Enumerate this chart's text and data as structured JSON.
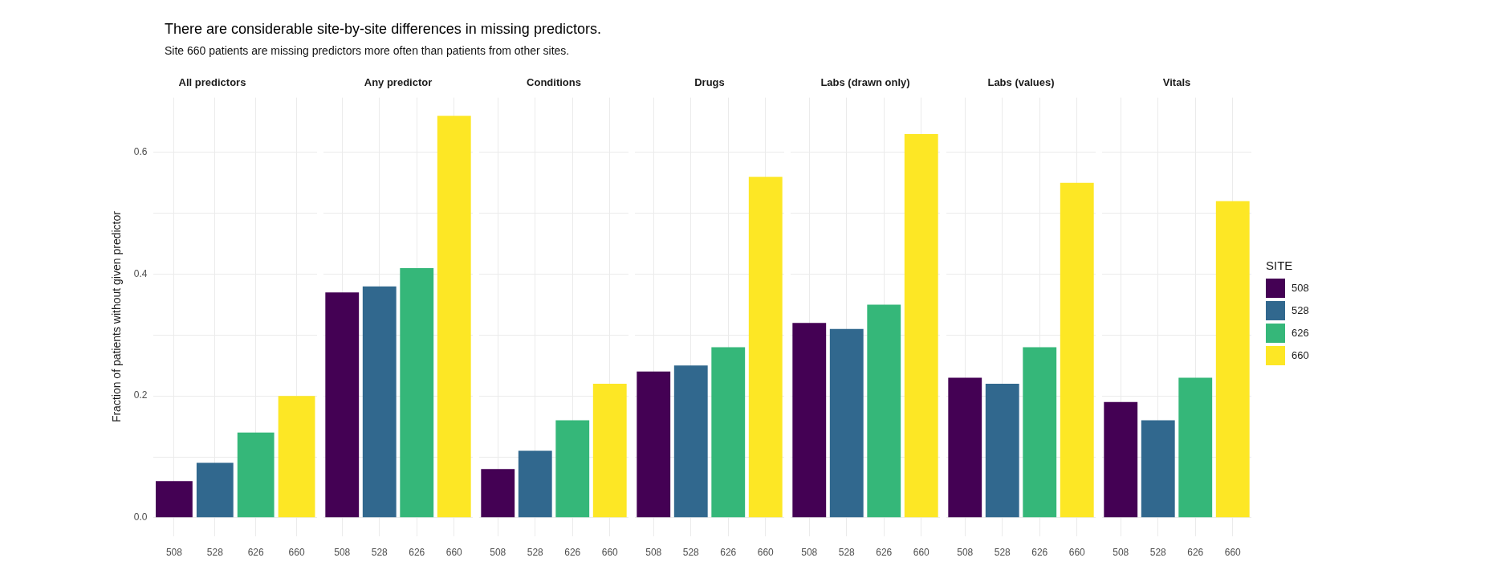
{
  "chart_data": [
    {
      "type": "other",
      "title": "There are considerable site-by-site differences in missing predictors.",
      "subtitle": "Site 660 patients are missing predictors more often than patients from other sites."
    },
    {
      "type": "bar",
      "title": "All predictors",
      "ylabel": "Fraction of patients without given predictor",
      "categories": [
        "508",
        "528",
        "626",
        "660"
      ],
      "series": [
        {
          "name": "508",
          "color": "#440154",
          "values": [
            0.06,
            null,
            null,
            null
          ]
        },
        {
          "name": "528",
          "color": "#31688e",
          "values": [
            null,
            0.09,
            null,
            null
          ]
        },
        {
          "name": "626",
          "color": "#35b779",
          "values": [
            null,
            null,
            0.14,
            null
          ]
        },
        {
          "name": "660",
          "color": "#fde725",
          "values": [
            null,
            null,
            null,
            0.2
          ]
        }
      ],
      "ylim": [
        -0.03,
        0.69
      ],
      "yticks": [
        {
          "value": 0,
          "label": "0.0"
        },
        {
          "value": 0.1,
          "label": null
        },
        0.2,
        {
          "value": 0.3,
          "label": null
        },
        0.4,
        {
          "value": 0.5,
          "label": null
        },
        0.6
      ],
      "grid": true,
      "legend": "right",
      "legend_title": "SITE"
    },
    {
      "type": "bar",
      "title": "Any predictor",
      "categories": [
        "508",
        "528",
        "626",
        "660"
      ],
      "series": [
        {
          "name": "508",
          "color": "#440154",
          "values": [
            0.37,
            null,
            null,
            null
          ]
        },
        {
          "name": "528",
          "color": "#31688e",
          "values": [
            null,
            0.38,
            null,
            null
          ]
        },
        {
          "name": "626",
          "color": "#35b779",
          "values": [
            null,
            null,
            0.41,
            null
          ]
        },
        {
          "name": "660",
          "color": "#fde725",
          "values": [
            null,
            null,
            null,
            0.66
          ]
        }
      ],
      "ylim": [
        -0.03,
        0.69
      ],
      "yticks": [
        0,
        0.1,
        0.2,
        0.3,
        0.4,
        0.5,
        0.6
      ],
      "grid": true,
      "tick_labels": "x"
    },
    {
      "type": "bar",
      "title": "Conditions",
      "categories": [
        "508",
        "528",
        "626",
        "660"
      ],
      "series": [
        {
          "name": "508",
          "color": "#440154",
          "values": [
            0.08,
            null,
            null,
            null
          ]
        },
        {
          "name": "528",
          "color": "#31688e",
          "values": [
            null,
            0.11,
            null,
            null
          ]
        },
        {
          "name": "626",
          "color": "#35b779",
          "values": [
            null,
            null,
            0.16,
            null
          ]
        },
        {
          "name": "660",
          "color": "#fde725",
          "values": [
            null,
            null,
            null,
            0.22
          ]
        }
      ],
      "ylim": [
        -0.03,
        0.69
      ],
      "yticks": [
        0,
        0.1,
        0.2,
        0.3,
        0.4,
        0.5,
        0.6
      ],
      "grid": true,
      "tick_labels": "x"
    },
    {
      "type": "bar",
      "title": "Drugs",
      "categories": [
        "508",
        "528",
        "626",
        "660"
      ],
      "series": [
        {
          "name": "508",
          "color": "#440154",
          "values": [
            0.24,
            null,
            null,
            null
          ]
        },
        {
          "name": "528",
          "color": "#31688e",
          "values": [
            null,
            0.25,
            null,
            null
          ]
        },
        {
          "name": "626",
          "color": "#35b779",
          "values": [
            null,
            null,
            0.28,
            null
          ]
        },
        {
          "name": "660",
          "color": "#fde725",
          "values": [
            null,
            null,
            null,
            0.56
          ]
        }
      ],
      "ylim": [
        -0.03,
        0.69
      ],
      "yticks": [
        0,
        0.1,
        0.2,
        0.3,
        0.4,
        0.5,
        0.6
      ],
      "grid": true,
      "tick_labels": "x"
    },
    {
      "type": "bar",
      "title": "Labs (drawn only)",
      "categories": [
        "508",
        "528",
        "626",
        "660"
      ],
      "series": [
        {
          "name": "508",
          "color": "#440154",
          "values": [
            0.32,
            null,
            null,
            null
          ]
        },
        {
          "name": "528",
          "color": "#31688e",
          "values": [
            null,
            0.31,
            null,
            null
          ]
        },
        {
          "name": "626",
          "color": "#35b779",
          "values": [
            null,
            null,
            0.35,
            null
          ]
        },
        {
          "name": "660",
          "color": "#fde725",
          "values": [
            null,
            null,
            null,
            0.63
          ]
        }
      ],
      "ylim": [
        -0.03,
        0.69
      ],
      "yticks": [
        0,
        0.1,
        0.2,
        0.3,
        0.4,
        0.5,
        0.6
      ],
      "grid": true,
      "tick_labels": "x"
    },
    {
      "type": "bar",
      "title": "Labs (values)",
      "categories": [
        "508",
        "528",
        "626",
        "660"
      ],
      "series": [
        {
          "name": "508",
          "color": "#440154",
          "values": [
            0.23,
            null,
            null,
            null
          ]
        },
        {
          "name": "528",
          "color": "#31688e",
          "values": [
            null,
            0.22,
            null,
            null
          ]
        },
        {
          "name": "626",
          "color": "#35b779",
          "values": [
            null,
            null,
            0.28,
            null
          ]
        },
        {
          "name": "660",
          "color": "#fde725",
          "values": [
            null,
            null,
            null,
            0.55
          ]
        }
      ],
      "ylim": [
        -0.03,
        0.69
      ],
      "yticks": [
        0,
        0.1,
        0.2,
        0.3,
        0.4,
        0.5,
        0.6
      ],
      "grid": true,
      "tick_labels": "x"
    },
    {
      "type": "bar",
      "title": "Vitals",
      "categories": [
        "508",
        "528",
        "626",
        "660"
      ],
      "series": [
        {
          "name": "508",
          "color": "#440154",
          "values": [
            0.19,
            null,
            null,
            null
          ]
        },
        {
          "name": "528",
          "color": "#31688e",
          "values": [
            null,
            0.16,
            null,
            null
          ]
        },
        {
          "name": "626",
          "color": "#35b779",
          "values": [
            null,
            null,
            0.23,
            null
          ]
        },
        {
          "name": "660",
          "color": "#fde725",
          "values": [
            null,
            null,
            null,
            0.52
          ]
        }
      ],
      "ylim": [
        -0.03,
        0.69
      ],
      "yticks": [
        0,
        0.1,
        0.2,
        0.3,
        0.4,
        0.5,
        0.6
      ],
      "grid": true,
      "tick_labels": "x"
    }
  ]
}
